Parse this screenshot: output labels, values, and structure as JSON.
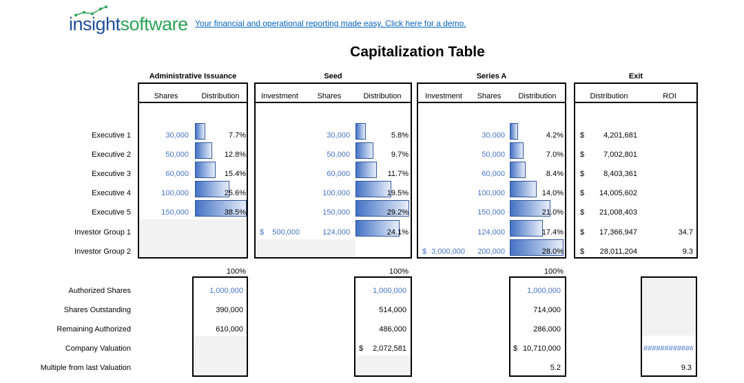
{
  "header": {
    "logo_part1": "insight",
    "logo_part2": "software",
    "tagline": "Your financial and operational reporting made easy. Click here for a demo.",
    "title": "Capitalization Table"
  },
  "sections": {
    "admin": "Administrative Issuance",
    "seed": "Seed",
    "seriesA": "Series A",
    "exit": "Exit"
  },
  "columns": {
    "admin": [
      "Shares",
      "Distribution"
    ],
    "seed": [
      "Investment",
      "Shares",
      "Distribution"
    ],
    "seriesA": [
      "Investment",
      "Shares",
      "Distribution"
    ],
    "exit": [
      "Distribution",
      "ROI"
    ]
  },
  "rows": [
    {
      "label": "Executive 1",
      "admin_shares": "30,000",
      "admin_dist": "7.7%",
      "admin_pct": 7.7,
      "seed_inv": "",
      "seed_shares": "30,000",
      "seed_dist": "5.8%",
      "seed_pct": 5.8,
      "a_inv": "",
      "a_shares": "30,000",
      "a_dist": "4.2%",
      "a_pct": 4.2,
      "exit_dist": "4,201,681",
      "roi": ""
    },
    {
      "label": "Executive 2",
      "admin_shares": "50,000",
      "admin_dist": "12.8%",
      "admin_pct": 12.8,
      "seed_inv": "",
      "seed_shares": "50,000",
      "seed_dist": "9.7%",
      "seed_pct": 9.7,
      "a_inv": "",
      "a_shares": "50,000",
      "a_dist": "7.0%",
      "a_pct": 7.0,
      "exit_dist": "7,002,801",
      "roi": ""
    },
    {
      "label": "Executive 3",
      "admin_shares": "60,000",
      "admin_dist": "15.4%",
      "admin_pct": 15.4,
      "seed_inv": "",
      "seed_shares": "60,000",
      "seed_dist": "11.7%",
      "seed_pct": 11.7,
      "a_inv": "",
      "a_shares": "60,000",
      "a_dist": "8.4%",
      "a_pct": 8.4,
      "exit_dist": "8,403,361",
      "roi": ""
    },
    {
      "label": "Executive 4",
      "admin_shares": "100,000",
      "admin_dist": "25.6%",
      "admin_pct": 25.6,
      "seed_inv": "",
      "seed_shares": "100,000",
      "seed_dist": "19.5%",
      "seed_pct": 19.5,
      "a_inv": "",
      "a_shares": "100,000",
      "a_dist": "14.0%",
      "a_pct": 14.0,
      "exit_dist": "14,005,602",
      "roi": ""
    },
    {
      "label": "Executive 5",
      "admin_shares": "150,000",
      "admin_dist": "38.5%",
      "admin_pct": 38.5,
      "seed_inv": "",
      "seed_shares": "150,000",
      "seed_dist": "29.2%",
      "seed_pct": 29.2,
      "a_inv": "",
      "a_shares": "150,000",
      "a_dist": "21.0%",
      "a_pct": 21.0,
      "exit_dist": "21,008,403",
      "roi": ""
    },
    {
      "label": "Investor Group 1",
      "admin_shares": "",
      "admin_dist": "",
      "admin_pct": 0,
      "seed_inv": "500,000",
      "seed_shares": "124,000",
      "seed_dist": "24.1%",
      "seed_pct": 24.1,
      "a_inv": "",
      "a_shares": "124,000",
      "a_dist": "17.4%",
      "a_pct": 17.4,
      "exit_dist": "17,366,947",
      "roi": "34.7"
    },
    {
      "label": "Investor Group 2",
      "admin_shares": "",
      "admin_dist": "",
      "admin_pct": 0,
      "seed_inv": "",
      "seed_shares": "",
      "seed_dist": "",
      "seed_pct": 0,
      "a_inv": "3,000,000",
      "a_shares": "200,000",
      "a_dist": "28.0%",
      "a_pct": 28.0,
      "exit_dist": "28,011,204",
      "roi": "9.3"
    }
  ],
  "totals": {
    "admin": "100%",
    "seed": "100%",
    "seriesA": "100%"
  },
  "currency": "$",
  "summary": {
    "labels": [
      "Authorized Shares",
      "Shares Outstanding",
      "Remaining Authorized",
      "Company Valuation",
      "Multiple from last Valuation"
    ],
    "admin": {
      "authorized": "1,000,000",
      "outstanding": "390,000",
      "remaining": "610,000"
    },
    "seed": {
      "authorized": "1,000,000",
      "outstanding": "514,000",
      "remaining": "486,000",
      "valuation": "2,072,581"
    },
    "seriesA": {
      "authorized": "1,000,000",
      "outstanding": "714,000",
      "remaining": "286,000",
      "valuation": "10,710,000",
      "multiple": "5.2"
    },
    "exit": {
      "valuation": "############",
      "multiple": "9.3"
    }
  }
}
